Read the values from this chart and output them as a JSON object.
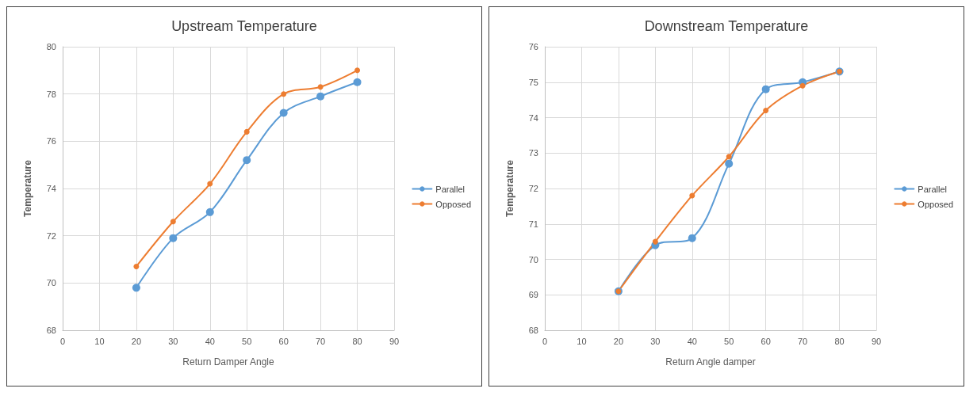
{
  "chart_data": [
    {
      "type": "line",
      "title": "Upstream Temperature",
      "xlabel": "Return Damper Angle",
      "ylabel": "Temperature",
      "x": [
        20,
        30,
        40,
        50,
        60,
        70,
        80
      ],
      "xlim": [
        0,
        90
      ],
      "xticks": [
        0,
        10,
        20,
        30,
        40,
        50,
        60,
        70,
        80,
        90
      ],
      "ylim": [
        68,
        80
      ],
      "yticks": [
        68,
        70,
        72,
        74,
        76,
        78,
        80
      ],
      "grid": true,
      "legend": "right",
      "marker": "circle",
      "line_style": "solid",
      "series": [
        {
          "name": "Parallel",
          "color": "#5b9bd5",
          "values": [
            69.8,
            71.9,
            73.0,
            75.2,
            77.2,
            77.9,
            78.5
          ]
        },
        {
          "name": "Opposed",
          "color": "#ed7d31",
          "values": [
            70.7,
            72.6,
            74.2,
            76.4,
            78.0,
            78.3,
            79.0
          ]
        }
      ]
    },
    {
      "type": "line",
      "title": "Downstream Temperature",
      "xlabel": "Return Angle damper",
      "ylabel": "Temperature",
      "x": [
        20,
        30,
        40,
        50,
        60,
        70,
        80
      ],
      "xlim": [
        0,
        90
      ],
      "xticks": [
        0,
        10,
        20,
        30,
        40,
        50,
        60,
        70,
        80,
        90
      ],
      "ylim": [
        68,
        76
      ],
      "yticks": [
        68,
        69,
        70,
        71,
        72,
        73,
        74,
        75,
        76
      ],
      "grid": true,
      "legend": "right",
      "marker": "circle",
      "line_style": "solid",
      "series": [
        {
          "name": "Parallel",
          "color": "#5b9bd5",
          "values": [
            69.1,
            70.4,
            70.6,
            72.7,
            74.8,
            75.0,
            75.3
          ]
        },
        {
          "name": "Opposed",
          "color": "#ed7d31",
          "values": [
            69.1,
            70.5,
            71.8,
            72.9,
            74.2,
            74.9,
            75.3
          ]
        }
      ]
    }
  ]
}
